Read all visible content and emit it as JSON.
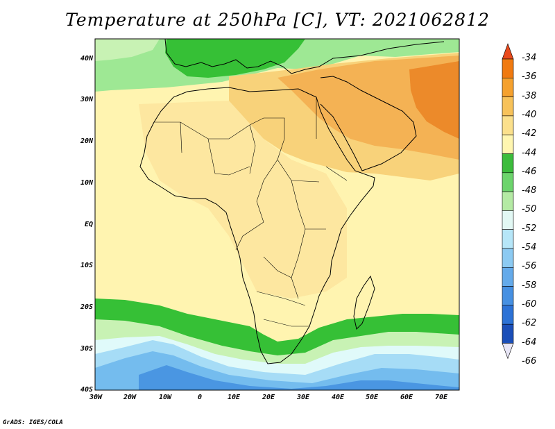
{
  "title": "Temperature at 250hPa [C], VT: 2021062812",
  "credit": "GrADS: IGES/COLA",
  "lat_labels": [
    "40N",
    "30N",
    "20N",
    "10N",
    "EQ",
    "10S",
    "20S",
    "30S",
    "40S"
  ],
  "lon_labels": [
    "30W",
    "20W",
    "10W",
    "0",
    "10E",
    "20E",
    "30E",
    "40E",
    "50E",
    "60E",
    "70E"
  ],
  "colorbar": {
    "labels": [
      "-34",
      "-36",
      "-38",
      "-40",
      "-42",
      "-44",
      "-46",
      "-48",
      "-50",
      "-52",
      "-54",
      "-56",
      "-58",
      "-60",
      "-62",
      "-64",
      "-66"
    ],
    "colors": [
      "#e94a1c",
      "#f07a10",
      "#f5a12e",
      "#f7c25a",
      "#fbe08c",
      "#fff6b0",
      "#3cbc3c",
      "#6cd46c",
      "#b4eaa4",
      "#e2f8f4",
      "#b6e6f8",
      "#8ccaf2",
      "#64aaea",
      "#4690e2",
      "#2c72d6",
      "#1a4eb8",
      "#0a2088"
    ]
  },
  "field_legend": {
    "green_north": "#9ee894",
    "green_band": "#36c036",
    "light_green": "#c8f2b4",
    "cyan": "#e0fafa",
    "pale_yellow": "#fff4b0",
    "yellow": "#fde7a0",
    "light_orange": "#f8d27a",
    "orange": "#f4b254",
    "dark_orange": "#ec8a2a",
    "blue1": "#a6dcf6",
    "blue2": "#74bcee",
    "blue3": "#4a96e2"
  }
}
